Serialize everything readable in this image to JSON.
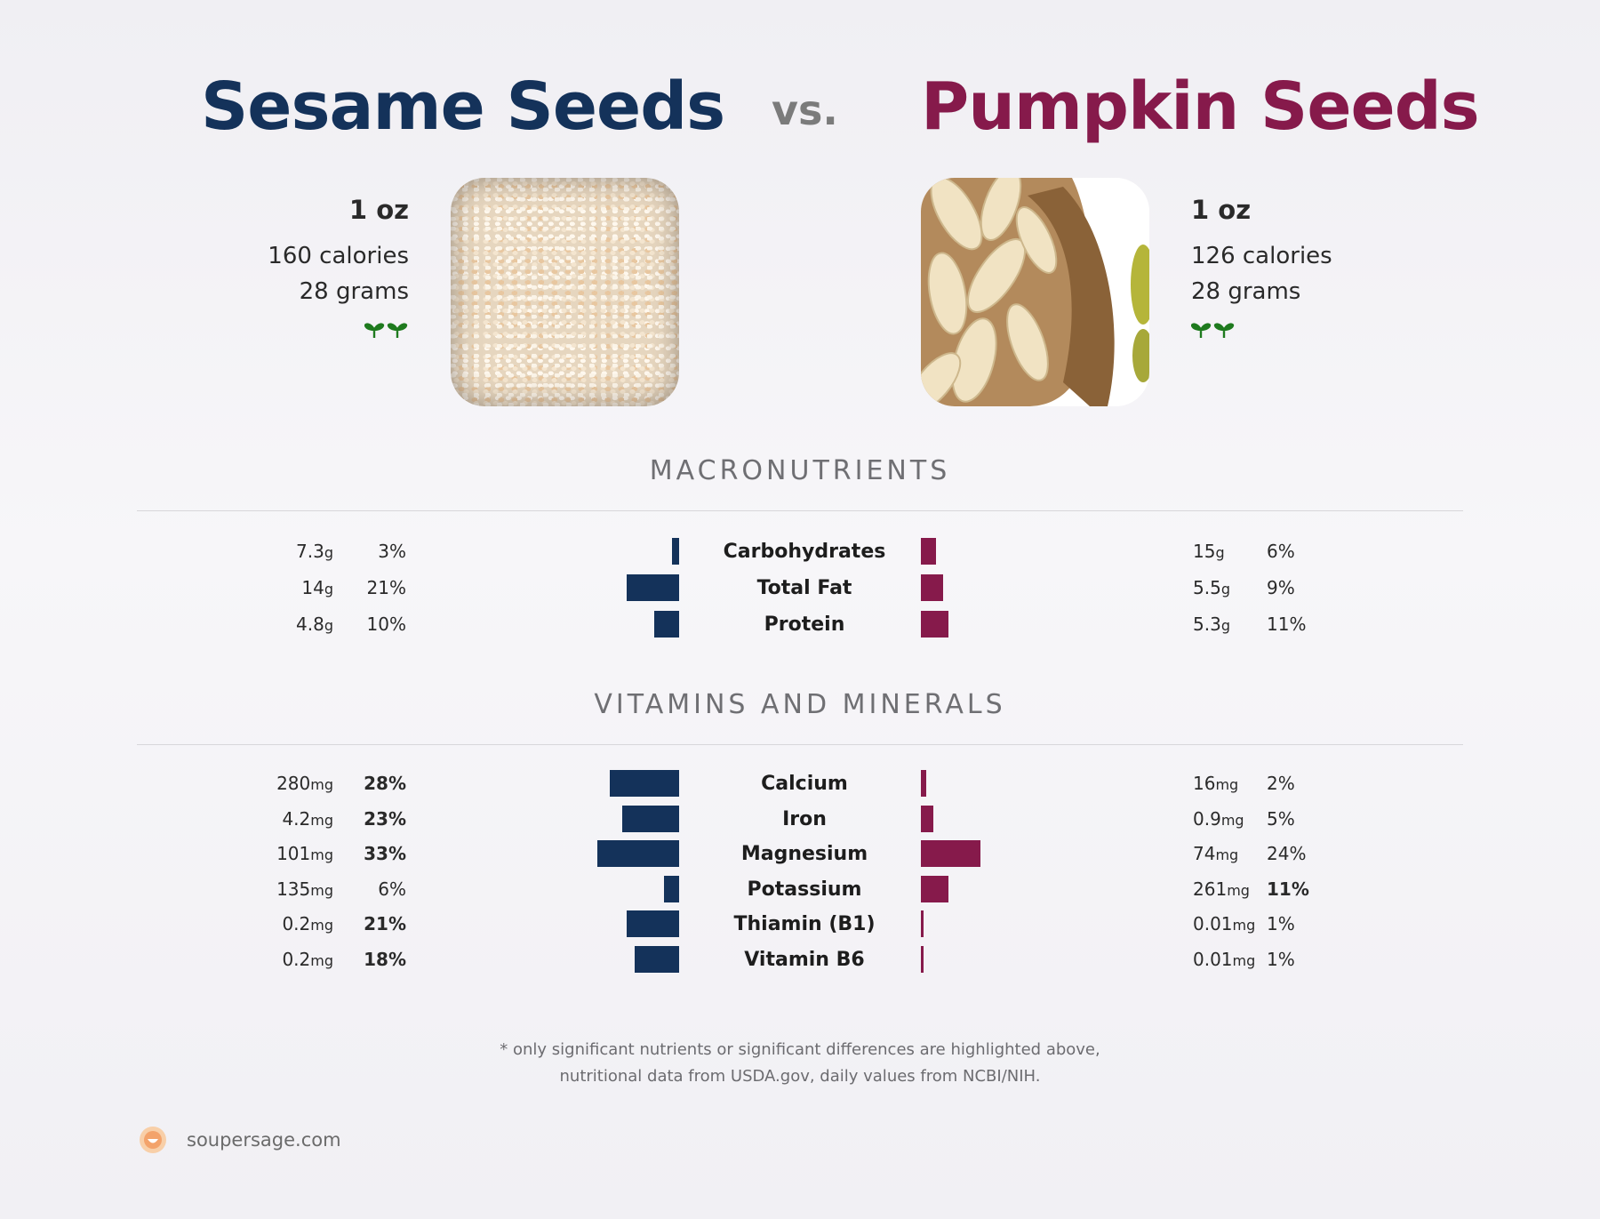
{
  "header": {
    "left_food": "Sesame Seeds",
    "vs": "vs.",
    "right_food": "Pumpkin Seeds"
  },
  "foods": {
    "left": {
      "serving": "1 oz",
      "calories": "160 calories",
      "grams": "28 grams",
      "icon": "sprout-icon"
    },
    "right": {
      "serving": "1 oz",
      "calories": "126 calories",
      "grams": "28 grams",
      "icon": "sprout-icon"
    }
  },
  "sections": {
    "macro": "MACRONUTRIENTS",
    "vitamins": "VITAMINS AND MINERALS"
  },
  "footnote": {
    "line1": "* only significant nutrients or significant differences are highlighted above,",
    "line2": "nutritional data from USDA.gov, daily values from NCBI/NIH."
  },
  "site": "soupersage.com",
  "colors": {
    "left": "#14325a",
    "right": "#861a4b",
    "sprout": "#1e7a1e",
    "logo": "#f3a36b"
  },
  "chart_data": {
    "type": "bar",
    "orientation": "diverging-horizontal",
    "series": [
      {
        "name": "Sesame Seeds",
        "color": "#14325a"
      },
      {
        "name": "Pumpkin Seeds",
        "color": "#861a4b"
      }
    ],
    "macronutrients": [
      {
        "name": "Carbohydrates",
        "left": {
          "amount": "7.3",
          "unit": "g",
          "pct": "3%",
          "value": 3,
          "bold": false
        },
        "right": {
          "amount": "15",
          "unit": "g",
          "pct": "6%",
          "value": 6,
          "bold": false
        }
      },
      {
        "name": "Total Fat",
        "left": {
          "amount": "14",
          "unit": "g",
          "pct": "21%",
          "value": 21,
          "bold": false
        },
        "right": {
          "amount": "5.5",
          "unit": "g",
          "pct": "9%",
          "value": 9,
          "bold": false
        }
      },
      {
        "name": "Protein",
        "left": {
          "amount": "4.8",
          "unit": "g",
          "pct": "10%",
          "value": 10,
          "bold": false
        },
        "right": {
          "amount": "5.3",
          "unit": "g",
          "pct": "11%",
          "value": 11,
          "bold": false
        }
      }
    ],
    "vitamins": [
      {
        "name": "Calcium",
        "left": {
          "amount": "280",
          "unit": "mg",
          "pct": "28%",
          "value": 28,
          "bold": true
        },
        "right": {
          "amount": "16",
          "unit": "mg",
          "pct": "2%",
          "value": 2,
          "bold": false
        }
      },
      {
        "name": "Iron",
        "left": {
          "amount": "4.2",
          "unit": "mg",
          "pct": "23%",
          "value": 23,
          "bold": true
        },
        "right": {
          "amount": "0.9",
          "unit": "mg",
          "pct": "5%",
          "value": 5,
          "bold": false
        }
      },
      {
        "name": "Magnesium",
        "left": {
          "amount": "101",
          "unit": "mg",
          "pct": "33%",
          "value": 33,
          "bold": true
        },
        "right": {
          "amount": "74",
          "unit": "mg",
          "pct": "24%",
          "value": 24,
          "bold": false
        }
      },
      {
        "name": "Potassium",
        "left": {
          "amount": "135",
          "unit": "mg",
          "pct": "6%",
          "value": 6,
          "bold": false
        },
        "right": {
          "amount": "261",
          "unit": "mg",
          "pct": "11%",
          "value": 11,
          "bold": true
        }
      },
      {
        "name": "Thiamin (B1)",
        "left": {
          "amount": "0.2",
          "unit": "mg",
          "pct": "21%",
          "value": 21,
          "bold": true
        },
        "right": {
          "amount": "0.01",
          "unit": "mg",
          "pct": "1%",
          "value": 1,
          "bold": false
        }
      },
      {
        "name": "Vitamin B6",
        "left": {
          "amount": "0.2",
          "unit": "mg",
          "pct": "18%",
          "value": 18,
          "bold": true
        },
        "right": {
          "amount": "0.01",
          "unit": "mg",
          "pct": "1%",
          "value": 1,
          "bold": false
        }
      }
    ]
  }
}
